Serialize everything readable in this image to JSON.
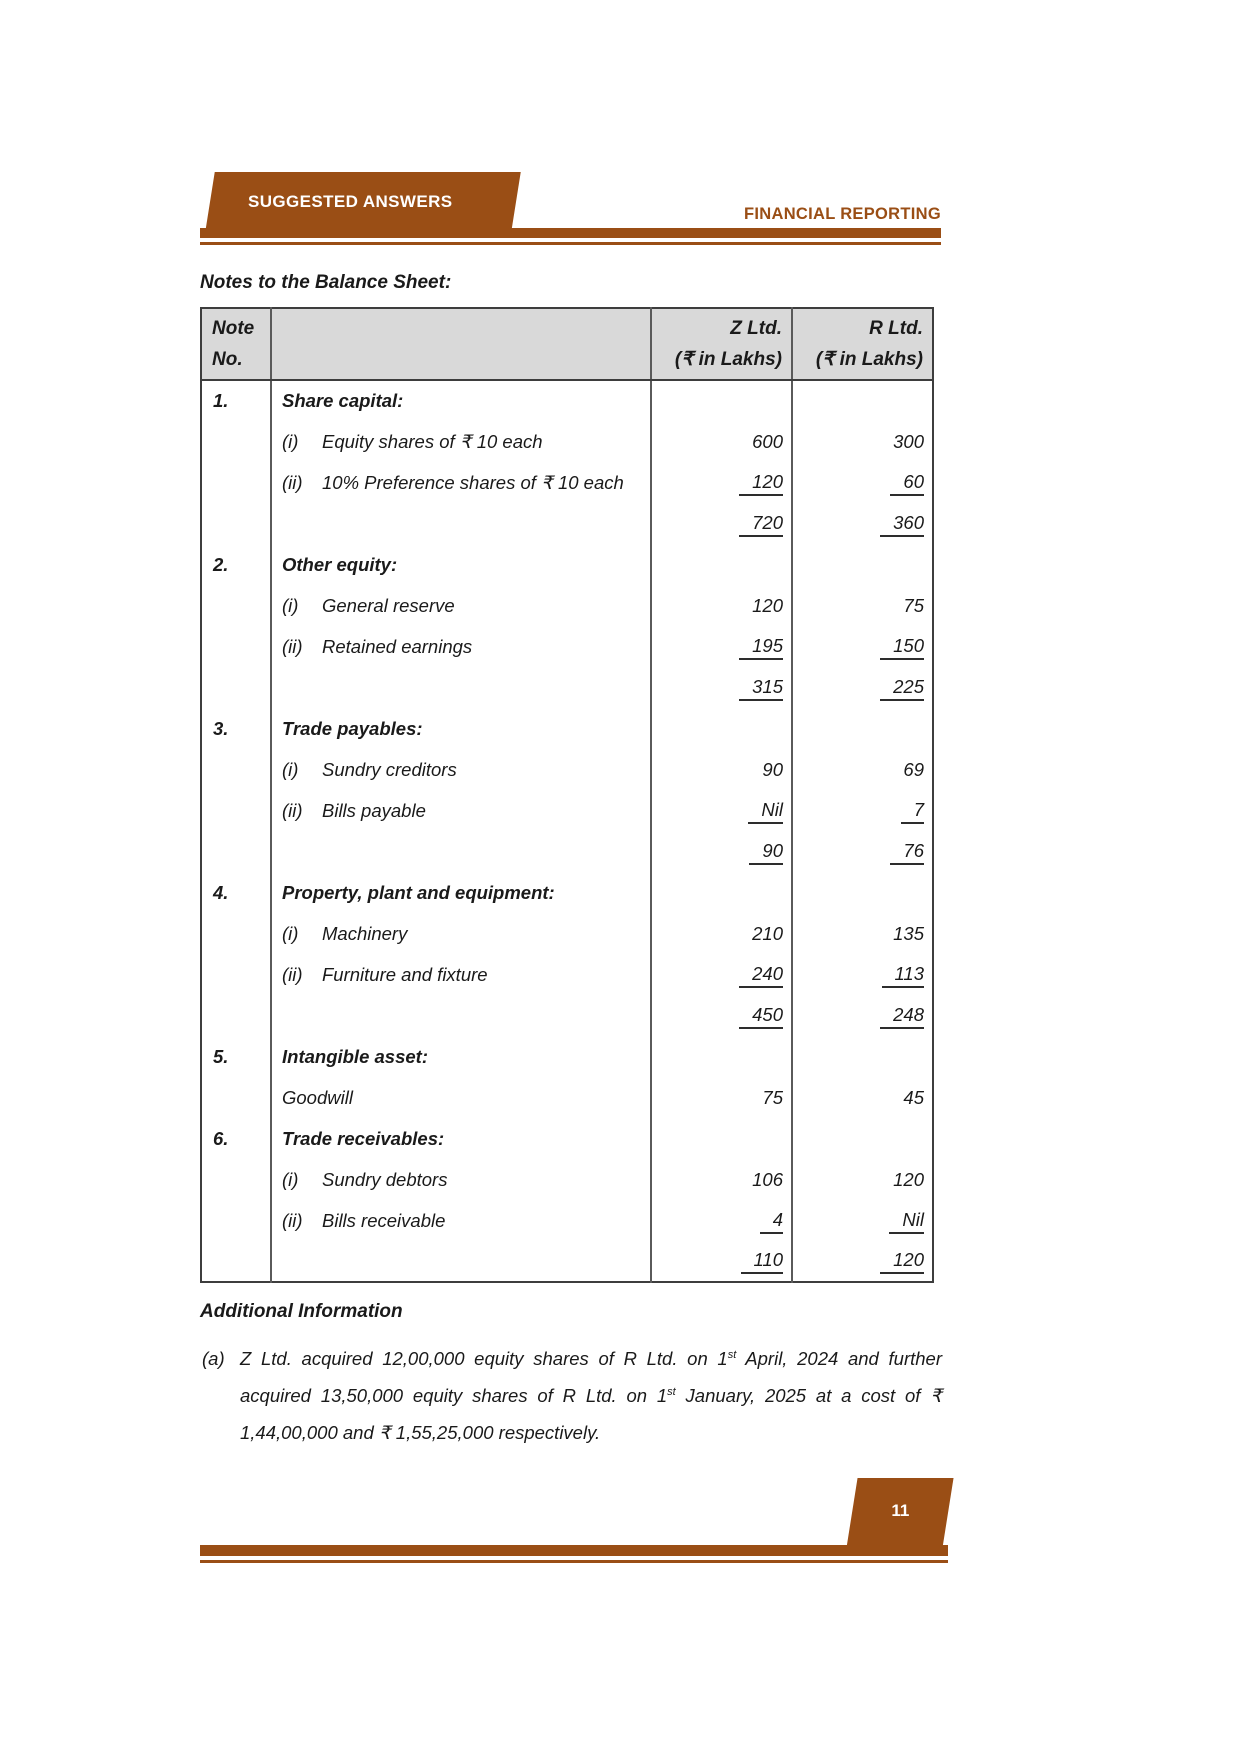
{
  "colors": {
    "brand_brown": "#9A4E15",
    "table_header_bg": "#D9D9D9",
    "border_dark": "#3d3d3d"
  },
  "header": {
    "banner_label": "SUGGESTED ANSWERS",
    "subject": "FINANCIAL REPORTING"
  },
  "content": {
    "table_title": "Notes to the Balance Sheet:",
    "table": {
      "header": {
        "note_line1": "Note",
        "note_line2": "No.",
        "z_line1": "Z Ltd.",
        "z_line2": "(₹ in Lakhs)",
        "r_line1": "R Ltd.",
        "r_line2": "(₹ in Lakhs)"
      },
      "rows": [
        {
          "note": "1.",
          "style": "section",
          "text": "Share capital:",
          "z": "",
          "r": ""
        },
        {
          "style": "item",
          "marker": "(i)",
          "text": "Equity shares of ₹ 10 each",
          "z": "600",
          "r": "300"
        },
        {
          "style": "item",
          "marker": "(ii)",
          "text": "10% Preference shares of ₹ 10 each",
          "z": "120",
          "z_u": true,
          "r": "60",
          "r_u": true
        },
        {
          "style": "total",
          "text": "",
          "z": "720",
          "z_u": true,
          "r": "360",
          "r_u": true
        },
        {
          "note": "2.",
          "style": "section",
          "text": "Other equity:",
          "z": "",
          "r": ""
        },
        {
          "style": "item",
          "marker": "(i)",
          "text": "General reserve",
          "z": "120",
          "r": "75"
        },
        {
          "style": "item",
          "marker": "(ii)",
          "text": "Retained earnings",
          "z": "195",
          "z_u": true,
          "r": "150",
          "r_u": true
        },
        {
          "style": "total",
          "text": "",
          "z": "315",
          "z_u": true,
          "r": "225",
          "r_u": true
        },
        {
          "note": "3.",
          "style": "section",
          "text": "Trade payables:",
          "z": "",
          "r": ""
        },
        {
          "style": "item",
          "marker": "(i)",
          "text": "Sundry creditors",
          "z": "90",
          "r": "69"
        },
        {
          "style": "item",
          "marker": "(ii)",
          "text": "Bills payable",
          "z": "Nil",
          "z_u": true,
          "r": "7",
          "r_u": true
        },
        {
          "style": "total",
          "text": "",
          "z": "90",
          "z_u": true,
          "r": "76",
          "r_u": true
        },
        {
          "note": "4.",
          "style": "section",
          "text": "Property, plant and equipment:",
          "z": "",
          "r": ""
        },
        {
          "style": "item",
          "marker": "(i)",
          "text": "Machinery",
          "z": "210",
          "r": "135"
        },
        {
          "style": "item",
          "marker": "(ii)",
          "text": "Furniture and fixture",
          "z": "240",
          "z_u": true,
          "r": "113",
          "r_u": true
        },
        {
          "style": "total",
          "text": "",
          "z": "450",
          "z_u": true,
          "r": "248",
          "r_u": true
        },
        {
          "note": "5.",
          "style": "section",
          "text": "Intangible asset:",
          "z": "",
          "r": ""
        },
        {
          "style": "plain",
          "text": "Goodwill",
          "z": "75",
          "r": "45"
        },
        {
          "note": "6.",
          "style": "section",
          "text": "Trade receivables:",
          "z": "",
          "r": ""
        },
        {
          "style": "item",
          "marker": "(i)",
          "text": "Sundry debtors",
          "z": "106",
          "r": "120"
        },
        {
          "style": "item",
          "marker": "(ii)",
          "text": "Bills receivable",
          "z": "4",
          "z_u": true,
          "r": "Nil",
          "r_u": true
        },
        {
          "style": "total",
          "text": "",
          "z": "110",
          "z_u": true,
          "r": "120",
          "r_u": true
        }
      ]
    },
    "additional_info": {
      "heading": "Additional Information",
      "items": [
        {
          "marker": "(a)",
          "segments": [
            {
              "t": "Z Ltd. acquired 12,00,000 equity shares of R Ltd. on 1"
            },
            {
              "sup": "st"
            },
            {
              "t": " April, 2024 and further acquired 13,50,000 equity shares of R Ltd. on 1"
            },
            {
              "sup": "st"
            },
            {
              "t": " January, 2025 at a cost of ₹ 1,44,00,000 and ₹ 1,55,25,000 respectively."
            }
          ]
        }
      ]
    }
  },
  "footer": {
    "page_number": "11"
  }
}
